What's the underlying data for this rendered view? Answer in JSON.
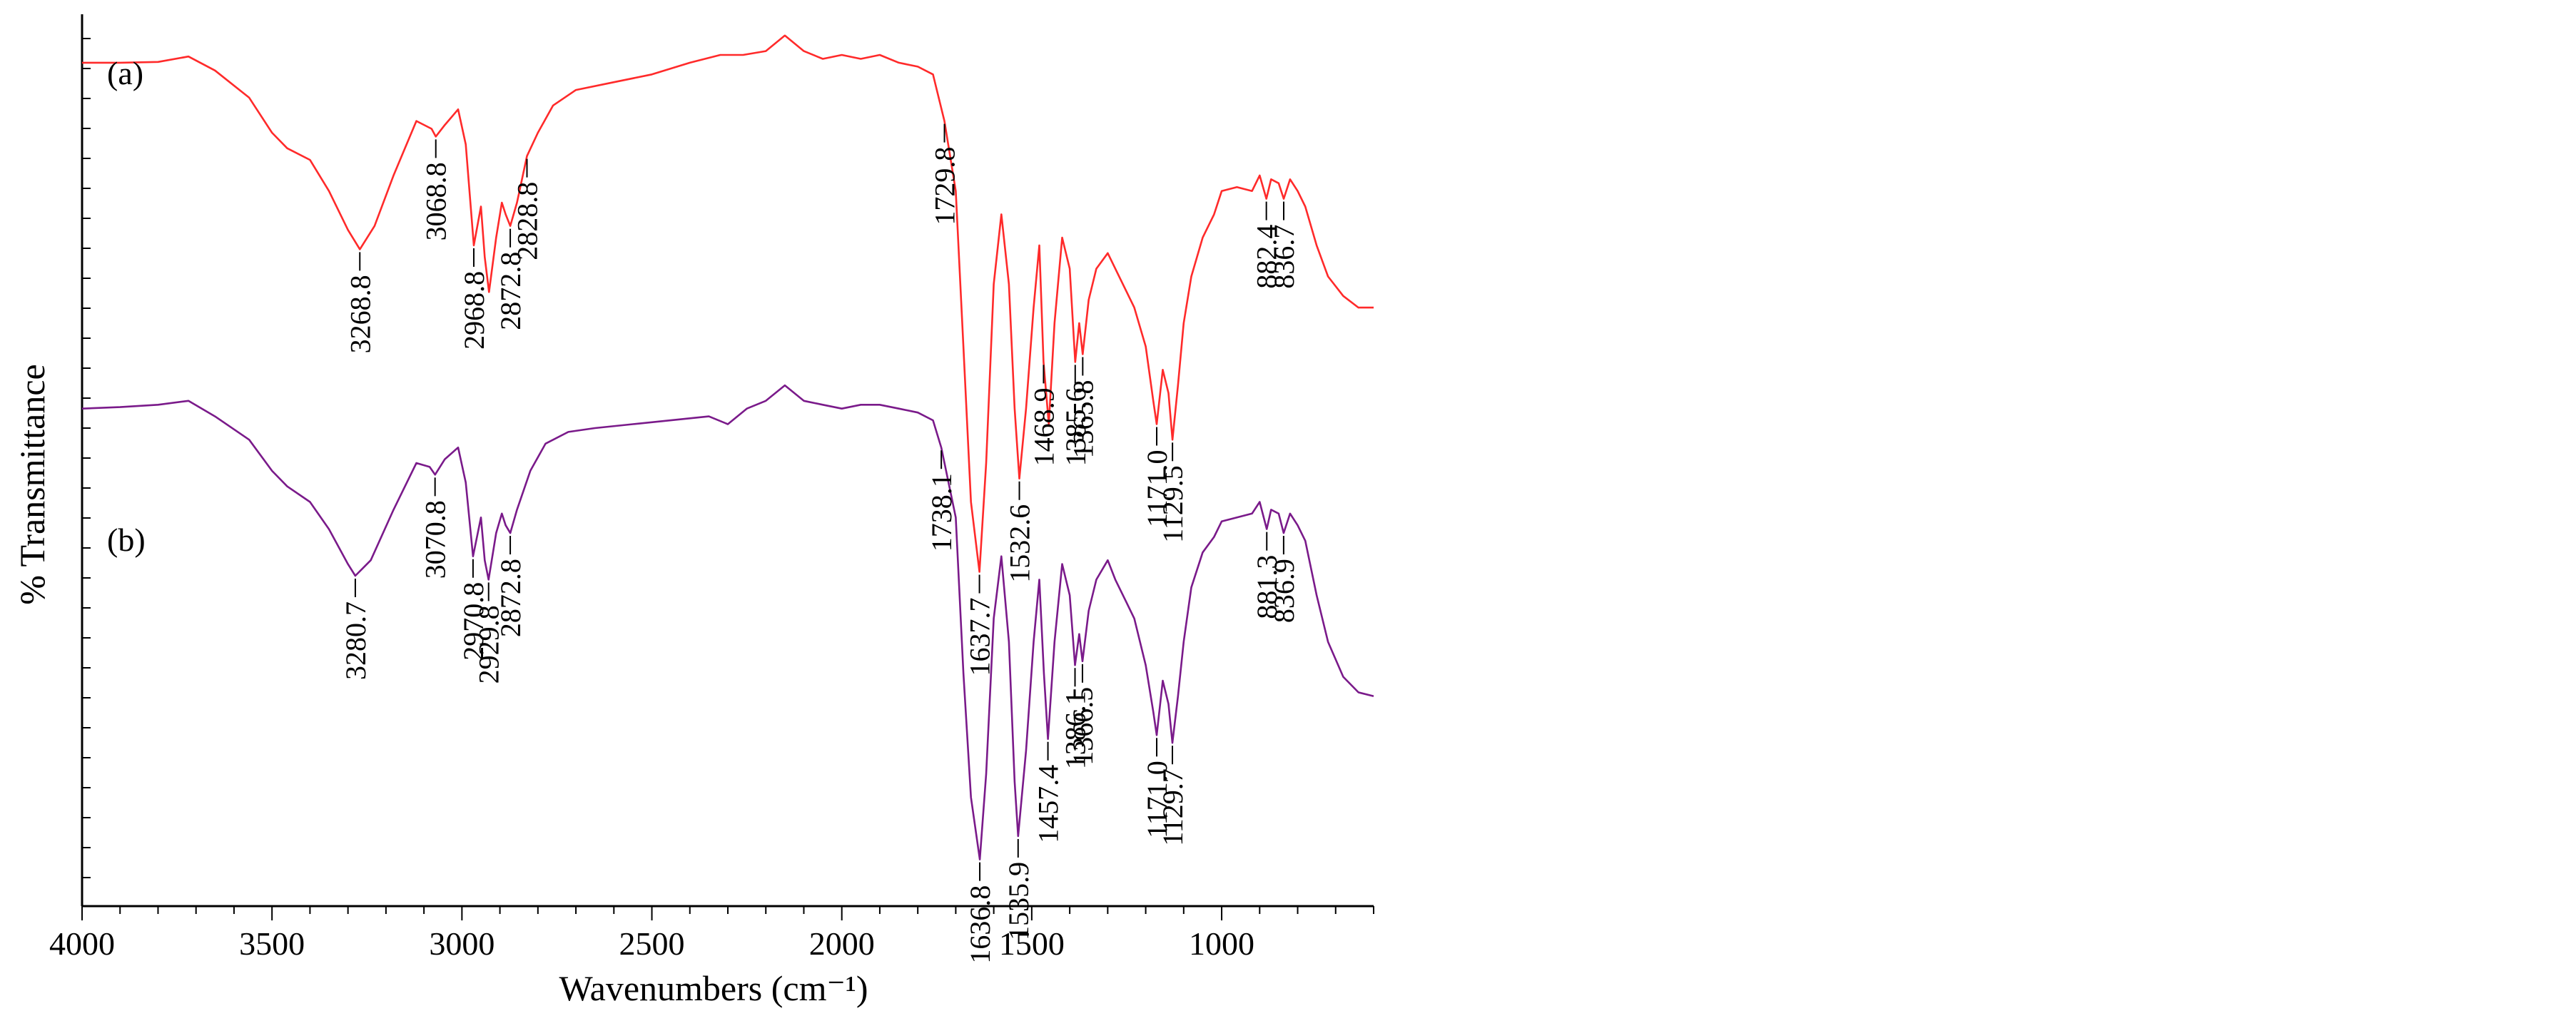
{
  "chart_data": {
    "type": "line",
    "title": "",
    "xlabel": "Wavenumbers (cm⁻¹)",
    "ylabel": "% Transmittance",
    "xlim": [
      4000,
      600
    ],
    "x_reversed": true,
    "x_ticks": [
      4000,
      3500,
      3000,
      2500,
      2000,
      1500,
      1000
    ],
    "y_ticks_labeled": false,
    "grid": false,
    "legend": "none",
    "series": [
      {
        "name": "(a)",
        "color": "#ff2a2a",
        "label_color": "#000000",
        "points": [
          [
            4000,
            96.5
          ],
          [
            3900,
            96.5
          ],
          [
            3800,
            96.6
          ],
          [
            3720,
            97.3
          ],
          [
            3650,
            95.5
          ],
          [
            3560,
            92.0
          ],
          [
            3500,
            87.5
          ],
          [
            3460,
            85.5
          ],
          [
            3400,
            84.0
          ],
          [
            3350,
            80.0
          ],
          [
            3300,
            75.0
          ],
          [
            3268.8,
            72.5
          ],
          [
            3230,
            75.5
          ],
          [
            3180,
            82.0
          ],
          [
            3120,
            89.0
          ],
          [
            3080,
            88.0
          ],
          [
            3068.8,
            87.0
          ],
          [
            3045,
            88.5
          ],
          [
            3010,
            90.5
          ],
          [
            2990,
            86.0
          ],
          [
            2968.8,
            73.0
          ],
          [
            2950,
            78.0
          ],
          [
            2940,
            71.5
          ],
          [
            2928.8,
            67.0
          ],
          [
            2910,
            74.0
          ],
          [
            2895,
            78.5
          ],
          [
            2885,
            77.0
          ],
          [
            2872.8,
            75.5
          ],
          [
            2855,
            78.5
          ],
          [
            2828.8,
            84.5
          ],
          [
            2800,
            87.5
          ],
          [
            2760,
            91.0
          ],
          [
            2700,
            93.0
          ],
          [
            2600,
            94.0
          ],
          [
            2500,
            95.0
          ],
          [
            2400,
            96.5
          ],
          [
            2320,
            97.5
          ],
          [
            2260,
            97.5
          ],
          [
            2200,
            98.0
          ],
          [
            2150,
            100.0
          ],
          [
            2100,
            98.0
          ],
          [
            2050,
            97.0
          ],
          [
            2000,
            97.5
          ],
          [
            1950,
            97.0
          ],
          [
            1900,
            97.5
          ],
          [
            1850,
            96.5
          ],
          [
            1800,
            96.0
          ],
          [
            1760,
            95.0
          ],
          [
            1729.8,
            89.0
          ],
          [
            1700,
            80.0
          ],
          [
            1680,
            60.0
          ],
          [
            1660,
            40.0
          ],
          [
            1637.7,
            31.0
          ],
          [
            1620,
            45.0
          ],
          [
            1600,
            68.0
          ],
          [
            1580,
            77.0
          ],
          [
            1560,
            68.0
          ],
          [
            1545,
            52.0
          ],
          [
            1532.6,
            43.0
          ],
          [
            1515,
            52.0
          ],
          [
            1495,
            65.0
          ],
          [
            1480,
            73.0
          ],
          [
            1468.9,
            58.0
          ],
          [
            1455,
            50.0
          ],
          [
            1440,
            63.0
          ],
          [
            1420,
            74.0
          ],
          [
            1400,
            70.0
          ],
          [
            1385.6,
            58.0
          ],
          [
            1375,
            63.0
          ],
          [
            1365.8,
            59.0
          ],
          [
            1350,
            66.0
          ],
          [
            1330,
            70.0
          ],
          [
            1300,
            72.0
          ],
          [
            1280,
            70.0
          ],
          [
            1250,
            67.0
          ],
          [
            1230,
            65.0
          ],
          [
            1200,
            60.0
          ],
          [
            1180,
            53.0
          ],
          [
            1171.0,
            50.0
          ],
          [
            1155,
            57.0
          ],
          [
            1140,
            54.0
          ],
          [
            1129.5,
            48.0
          ],
          [
            1115,
            55.0
          ],
          [
            1100,
            63.0
          ],
          [
            1080,
            69.0
          ],
          [
            1050,
            74.0
          ],
          [
            1020,
            77.0
          ],
          [
            1000,
            80.0
          ],
          [
            960,
            80.5
          ],
          [
            920,
            80.0
          ],
          [
            900,
            82.0
          ],
          [
            882.4,
            79.0
          ],
          [
            870,
            81.5
          ],
          [
            850,
            81.0
          ],
          [
            836.7,
            79.0
          ],
          [
            820,
            81.5
          ],
          [
            800,
            80.0
          ],
          [
            780,
            78.0
          ],
          [
            750,
            73.0
          ],
          [
            720,
            69.0
          ],
          [
            680,
            66.5
          ],
          [
            640,
            65.0
          ],
          [
            600,
            65.0
          ]
        ],
        "peaks": [
          3268.8,
          3068.8,
          2968.8,
          2828.8,
          2872.8,
          1729.8,
          1637.7,
          1532.6,
          1468.9,
          1385.6,
          1365.8,
          1171.0,
          1129.5,
          882.4,
          836.7
        ],
        "peak_labels": [
          "3268.8",
          "3068.8",
          "2968.8",
          "2828.8",
          "2872.8",
          "1729.8",
          "1637.7",
          "1532.6",
          "1468.9",
          "1385.6",
          "1365.8",
          "1171.0",
          "1129.5",
          "882.4",
          "836.7"
        ]
      },
      {
        "name": "(b)",
        "color": "#7a1a8a",
        "label_color": "#000000",
        "points": [
          [
            4000,
            52.0
          ],
          [
            3900,
            52.2
          ],
          [
            3800,
            52.5
          ],
          [
            3720,
            53.0
          ],
          [
            3650,
            51.0
          ],
          [
            3560,
            48.0
          ],
          [
            3500,
            44.0
          ],
          [
            3460,
            42.0
          ],
          [
            3400,
            40.0
          ],
          [
            3350,
            36.5
          ],
          [
            3300,
            32.0
          ],
          [
            3280.7,
            30.5
          ],
          [
            3240,
            32.5
          ],
          [
            3180,
            39.0
          ],
          [
            3120,
            45.0
          ],
          [
            3085,
            44.5
          ],
          [
            3070.8,
            43.5
          ],
          [
            3045,
            45.5
          ],
          [
            3010,
            47.0
          ],
          [
            2990,
            42.5
          ],
          [
            2970.8,
            33.0
          ],
          [
            2950,
            38.0
          ],
          [
            2940,
            32.5
          ],
          [
            2929.8,
            30.0
          ],
          [
            2910,
            36.0
          ],
          [
            2895,
            38.5
          ],
          [
            2885,
            37.0
          ],
          [
            2872.8,
            36.0
          ],
          [
            2855,
            39.0
          ],
          [
            2820,
            44.0
          ],
          [
            2780,
            47.5
          ],
          [
            2720,
            49.0
          ],
          [
            2650,
            49.5
          ],
          [
            2550,
            50.0
          ],
          [
            2450,
            50.5
          ],
          [
            2350,
            51.0
          ],
          [
            2300,
            50.0
          ],
          [
            2250,
            52.0
          ],
          [
            2200,
            53.0
          ],
          [
            2150,
            55.0
          ],
          [
            2100,
            53.0
          ],
          [
            2050,
            52.5
          ],
          [
            2000,
            52.0
          ],
          [
            1950,
            52.5
          ],
          [
            1900,
            52.5
          ],
          [
            1850,
            52.0
          ],
          [
            1800,
            51.5
          ],
          [
            1760,
            50.5
          ],
          [
            1738.1,
            47.0
          ],
          [
            1700,
            38.0
          ],
          [
            1680,
            18.0
          ],
          [
            1660,
            2.0
          ],
          [
            1636.8,
            -6.0
          ],
          [
            1620,
            5.0
          ],
          [
            1600,
            25.0
          ],
          [
            1580,
            33.0
          ],
          [
            1560,
            22.0
          ],
          [
            1545,
            4.0
          ],
          [
            1535.9,
            -3.0
          ],
          [
            1515,
            8.0
          ],
          [
            1495,
            22.0
          ],
          [
            1480,
            30.0
          ],
          [
            1468,
            18.0
          ],
          [
            1457.4,
            9.5
          ],
          [
            1440,
            22.0
          ],
          [
            1420,
            32.0
          ],
          [
            1400,
            28.0
          ],
          [
            1386.1,
            19.0
          ],
          [
            1375,
            23.0
          ],
          [
            1366.5,
            19.5
          ],
          [
            1350,
            26.0
          ],
          [
            1330,
            30.0
          ],
          [
            1300,
            32.5
          ],
          [
            1280,
            30.0
          ],
          [
            1250,
            27.0
          ],
          [
            1230,
            25.0
          ],
          [
            1200,
            19.0
          ],
          [
            1180,
            13.0
          ],
          [
            1171.0,
            10.0
          ],
          [
            1155,
            17.0
          ],
          [
            1140,
            14.0
          ],
          [
            1129.7,
            9.0
          ],
          [
            1115,
            15.0
          ],
          [
            1100,
            22.0
          ],
          [
            1080,
            29.0
          ],
          [
            1050,
            33.5
          ],
          [
            1020,
            35.5
          ],
          [
            1000,
            37.5
          ],
          [
            960,
            38.0
          ],
          [
            920,
            38.5
          ],
          [
            900,
            40.0
          ],
          [
            881.3,
            36.5
          ],
          [
            870,
            39.0
          ],
          [
            850,
            38.5
          ],
          [
            836.9,
            36.0
          ],
          [
            820,
            38.5
          ],
          [
            800,
            37.0
          ],
          [
            780,
            35.0
          ],
          [
            750,
            28.0
          ],
          [
            720,
            22.0
          ],
          [
            680,
            17.5
          ],
          [
            640,
            15.5
          ],
          [
            600,
            15.0
          ]
        ],
        "peaks": [
          3280.7,
          3070.8,
          2970.8,
          2929.8,
          2872.8,
          1738.1,
          1636.8,
          1535.9,
          1457.4,
          1386.1,
          1366.5,
          1171.0,
          1129.7,
          881.3,
          836.9
        ],
        "peak_labels": [
          "3280.7",
          "3070.8",
          "2970.8",
          "2929.8",
          "2872.8",
          "1738.1",
          "1636.8",
          "1535.9",
          "1457.4",
          "1386.1",
          "1366.5",
          "1171.0",
          "1129.7",
          "881.3",
          "836.9"
        ]
      }
    ],
    "ylim": [
      -12,
      102
    ]
  }
}
